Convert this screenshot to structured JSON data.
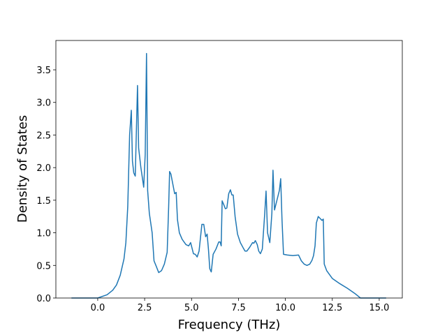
{
  "chart_data": {
    "type": "line",
    "xlabel": "Frequency (THz)",
    "ylabel": "Density of States",
    "color": "#1f77b4",
    "x": [
      -1.4,
      0.0,
      0.5,
      0.8,
      1.0,
      1.2,
      1.4,
      1.5,
      1.6,
      1.7,
      1.79,
      1.85,
      1.92,
      2.0,
      2.12,
      2.18,
      2.3,
      2.45,
      2.53,
      2.6,
      2.66,
      2.75,
      2.9,
      3.0,
      3.1,
      3.25,
      3.4,
      3.55,
      3.7,
      3.78,
      3.83,
      3.9,
      4.0,
      4.1,
      4.18,
      4.25,
      4.35,
      4.5,
      4.7,
      4.85,
      4.95,
      5.1,
      5.2,
      5.3,
      5.4,
      5.55,
      5.65,
      5.75,
      5.83,
      5.9,
      5.97,
      6.05,
      6.15,
      6.3,
      6.45,
      6.52,
      6.58,
      6.63,
      6.72,
      6.8,
      6.88,
      6.98,
      7.07,
      7.15,
      7.22,
      7.32,
      7.45,
      7.6,
      7.75,
      7.85,
      7.95,
      8.1,
      8.25,
      8.32,
      8.4,
      8.5,
      8.58,
      8.67,
      8.77,
      8.9,
      8.97,
      9.05,
      9.17,
      9.28,
      9.34,
      9.42,
      9.55,
      9.68,
      9.75,
      9.82,
      9.9,
      10.1,
      10.4,
      10.7,
      10.85,
      11.0,
      11.15,
      11.3,
      11.42,
      11.5,
      11.58,
      11.65,
      11.75,
      11.85,
      11.95,
      12.02,
      12.07,
      12.2,
      12.5,
      12.9,
      13.3,
      13.7,
      14.0,
      15.37
    ],
    "values": [
      0,
      0,
      0.05,
      0.12,
      0.2,
      0.35,
      0.6,
      0.85,
      1.4,
      2.5,
      2.88,
      2.1,
      1.92,
      1.87,
      3.26,
      2.3,
      2.0,
      1.7,
      2.2,
      3.75,
      1.65,
      1.3,
      1.0,
      0.57,
      0.5,
      0.39,
      0.42,
      0.52,
      0.7,
      1.4,
      1.94,
      1.9,
      1.75,
      1.6,
      1.62,
      1.2,
      1.0,
      0.9,
      0.82,
      0.8,
      0.85,
      0.68,
      0.67,
      0.63,
      0.72,
      1.13,
      1.13,
      0.94,
      0.98,
      0.75,
      0.45,
      0.4,
      0.67,
      0.75,
      0.86,
      0.86,
      0.8,
      1.49,
      1.43,
      1.37,
      1.38,
      1.6,
      1.66,
      1.58,
      1.58,
      1.25,
      0.98,
      0.85,
      0.77,
      0.72,
      0.72,
      0.78,
      0.85,
      0.84,
      0.88,
      0.82,
      0.72,
      0.68,
      0.75,
      1.3,
      1.64,
      1.0,
      0.85,
      1.3,
      1.96,
      1.35,
      1.5,
      1.65,
      1.83,
      1.2,
      0.67,
      0.66,
      0.65,
      0.66,
      0.57,
      0.52,
      0.5,
      0.52,
      0.58,
      0.65,
      0.8,
      1.15,
      1.25,
      1.22,
      1.19,
      1.21,
      0.52,
      0.42,
      0.3,
      0.22,
      0.15,
      0.07,
      0,
      0
    ],
    "xlim": [
      -2.23,
      16.23
    ],
    "xticks": [
      {
        "value": 0,
        "label": "0.0"
      },
      2.5,
      {
        "value": 5,
        "label": "5.0"
      },
      7.5,
      {
        "value": 10,
        "label": "10.0"
      },
      12.5,
      {
        "value": 15,
        "label": "15.0"
      }
    ],
    "ylim": [
      0,
      3.95
    ],
    "yticks": [
      {
        "value": 0,
        "label": "0.0"
      },
      0.5,
      {
        "value": 1,
        "label": "1.0"
      },
      1.5,
      {
        "value": 2,
        "label": "2.0"
      },
      2.5,
      {
        "value": 3,
        "label": "3.0"
      },
      3.5
    ],
    "grid": false
  }
}
